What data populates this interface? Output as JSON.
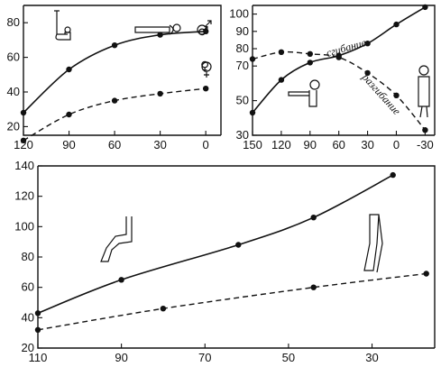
{
  "chart_data": [
    {
      "type": "line",
      "title": "",
      "xlabel": "",
      "ylabel": "",
      "xlim": [
        120,
        -10
      ],
      "ylim": [
        15,
        90
      ],
      "xticks": [
        120,
        90,
        60,
        30,
        0
      ],
      "yticks": [
        20,
        40,
        60,
        80
      ],
      "grid": false,
      "legend": "",
      "series": [
        {
          "name": "♂",
          "style": "solid",
          "x": [
            120,
            90,
            60,
            30,
            0
          ],
          "y": [
            28,
            53,
            67,
            73,
            75
          ]
        },
        {
          "name": "♀",
          "style": "dashed",
          "x": [
            120,
            90,
            60,
            30,
            0
          ],
          "y": [
            12,
            27,
            35,
            39,
            42
          ]
        }
      ]
    },
    {
      "type": "line",
      "title": "",
      "xlabel": "",
      "ylabel": "",
      "xlim": [
        150,
        -40
      ],
      "ylim": [
        30,
        105
      ],
      "xticks": [
        150,
        120,
        90,
        60,
        30,
        0,
        -30
      ],
      "yticks": [
        30,
        50,
        70,
        80,
        90,
        100
      ],
      "grid": false,
      "legend": "",
      "series": [
        {
          "name": "сгибание",
          "style": "solid",
          "x": [
            150,
            120,
            90,
            60,
            30,
            0,
            -30
          ],
          "y": [
            43,
            62,
            72,
            76,
            83,
            94,
            104
          ]
        },
        {
          "name": "разгибание",
          "style": "dashed",
          "x": [
            150,
            120,
            90,
            60,
            30,
            0,
            -30
          ],
          "y": [
            74,
            78,
            77,
            75,
            66,
            53,
            33
          ]
        }
      ]
    },
    {
      "type": "line",
      "title": "",
      "xlabel": "",
      "ylabel": "",
      "xlim": [
        110,
        15
      ],
      "ylim": [
        20,
        140
      ],
      "xticks": [
        110,
        90,
        70,
        50,
        30
      ],
      "yticks": [
        20,
        40,
        60,
        80,
        100,
        120,
        140
      ],
      "grid": false,
      "legend": "",
      "series": [
        {
          "name": "",
          "style": "solid",
          "x": [
            110,
            90,
            62,
            44,
            25
          ],
          "y": [
            43,
            65,
            88,
            106,
            134
          ]
        },
        {
          "name": "",
          "style": "dashed",
          "x": [
            110,
            80,
            44,
            17
          ],
          "y": [
            32,
            46,
            60,
            69
          ]
        }
      ]
    }
  ]
}
